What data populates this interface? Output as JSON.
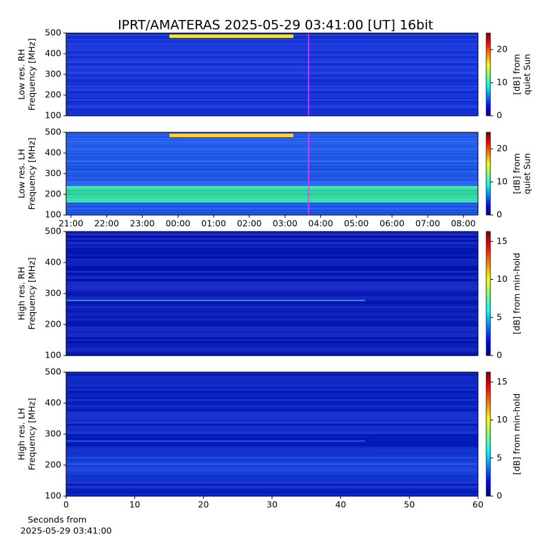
{
  "title": "IPRT/AMATERAS 2025-05-29 03:41:00 [UT]   16bit",
  "chart_data": [
    {
      "type": "heatmap",
      "ylabel": [
        "Low res. RH",
        "Frequency [MHz]"
      ],
      "ylim": [
        100,
        500
      ],
      "yticks": [
        100,
        200,
        300,
        400,
        500
      ],
      "xlim": [
        20.865,
        32.41
      ],
      "colorbar": {
        "label": [
          "[dB] from",
          "quiet Sun"
        ],
        "lim": [
          0,
          25
        ],
        "ticks": [
          0,
          10,
          20
        ]
      }
    },
    {
      "type": "heatmap",
      "ylabel": [
        "Low res. LH",
        "Frequency [MHz]"
      ],
      "ylim": [
        100,
        500
      ],
      "yticks": [
        100,
        200,
        300,
        400,
        500
      ],
      "xlim": [
        20.865,
        32.41
      ],
      "xticks": [
        {
          "value": 21,
          "label": "21:00"
        },
        {
          "value": 22,
          "label": "22:00"
        },
        {
          "value": 23,
          "label": "23:00"
        },
        {
          "value": 24,
          "label": "00:00"
        },
        {
          "value": 25,
          "label": "01:00"
        },
        {
          "value": 26,
          "label": "02:00"
        },
        {
          "value": 27,
          "label": "03:00"
        },
        {
          "value": 28,
          "label": "04:00"
        },
        {
          "value": 29,
          "label": "05:00"
        },
        {
          "value": 30,
          "label": "06:00"
        },
        {
          "value": 31,
          "label": "07:00"
        },
        {
          "value": 32,
          "label": "08:00"
        }
      ],
      "colorbar": {
        "label": [
          "[dB] from",
          "quiet Sun"
        ],
        "lim": [
          0,
          25
        ],
        "ticks": [
          0,
          10,
          20
        ]
      }
    },
    {
      "type": "heatmap",
      "ylabel": [
        "High res. RH",
        "Frequency [MHz]"
      ],
      "ylim": [
        100,
        500
      ],
      "yticks": [
        100,
        200,
        300,
        400,
        500
      ],
      "xlim": [
        0,
        60
      ],
      "colorbar": {
        "label": [
          "[dB] from min-hold"
        ],
        "lim": [
          0,
          16.3
        ],
        "ticks": [
          0,
          5,
          10,
          15
        ]
      }
    },
    {
      "type": "heatmap",
      "ylabel": [
        "High res. LH",
        "Frequency [MHz]"
      ],
      "ylim": [
        100,
        500
      ],
      "yticks": [
        100,
        200,
        300,
        400,
        500
      ],
      "xlim": [
        0,
        60
      ],
      "xticks": [
        0,
        10,
        20,
        30,
        40,
        50,
        60
      ],
      "xlabel": [
        "Seconds from",
        "2025-05-29 03:41:00"
      ],
      "colorbar": {
        "label": [
          "[dB] from min-hold"
        ],
        "lim": [
          0,
          16.3
        ],
        "ticks": [
          0,
          5,
          10,
          15
        ]
      }
    }
  ]
}
